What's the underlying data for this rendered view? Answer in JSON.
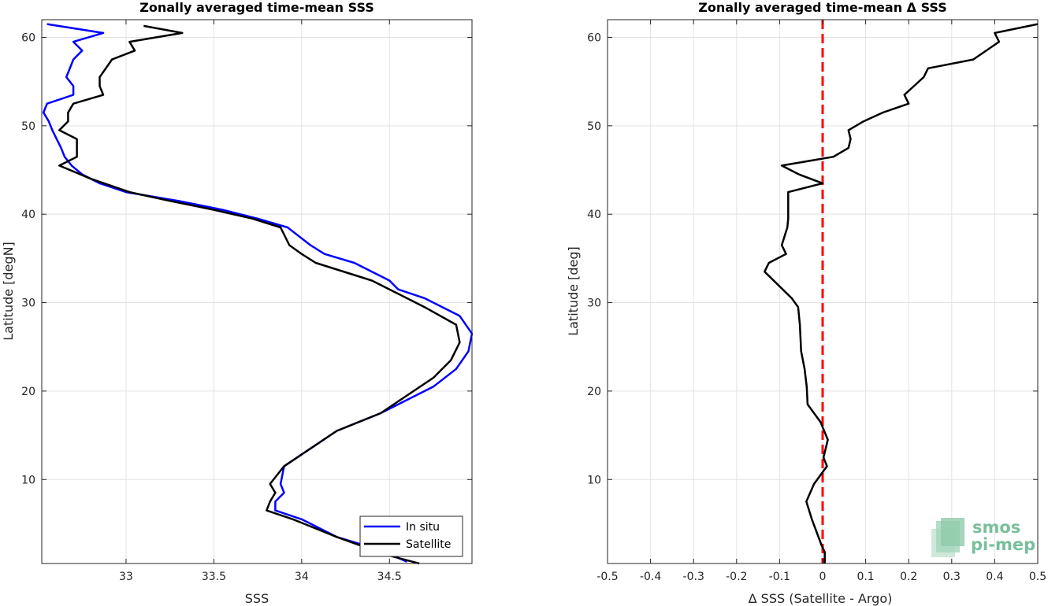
{
  "chart_data": [
    {
      "type": "line",
      "title": "Zonally averaged time-mean SSS",
      "xlabel": "SSS",
      "ylabel": "Latitude [degN]",
      "xlim": [
        32.52,
        34.97
      ],
      "ylim": [
        0.5,
        62
      ],
      "xticks": [
        33,
        33.5,
        34,
        34.5
      ],
      "xtick_labels": [
        "33",
        "33.5",
        "34",
        "34.5"
      ],
      "yticks": [
        10,
        20,
        30,
        40,
        50,
        60
      ],
      "ytick_labels": [
        "10",
        "20",
        "30",
        "40",
        "50",
        "60"
      ],
      "grid": true,
      "legend_position": "bottom-right",
      "series": [
        {
          "name": "In situ",
          "color": "#0000ff",
          "points": [
            [
              34.6,
              0.7
            ],
            [
              34.45,
              2
            ],
            [
              34.2,
              3.5
            ],
            [
              34.0,
              5.5
            ],
            [
              33.85,
              6.5
            ],
            [
              33.85,
              7.5
            ],
            [
              33.9,
              8.5
            ],
            [
              33.88,
              9.5
            ],
            [
              33.9,
              11.5
            ],
            [
              34.05,
              13.5
            ],
            [
              34.2,
              15.5
            ],
            [
              34.45,
              17.5
            ],
            [
              34.65,
              19.5
            ],
            [
              34.75,
              20.5
            ],
            [
              34.88,
              22.5
            ],
            [
              34.95,
              24.5
            ],
            [
              34.97,
              26.5
            ],
            [
              34.9,
              28.5
            ],
            [
              34.7,
              30.5
            ],
            [
              34.55,
              31.5
            ],
            [
              34.5,
              32.5
            ],
            [
              34.3,
              34.5
            ],
            [
              34.13,
              35.5
            ],
            [
              34.05,
              36.5
            ],
            [
              33.92,
              38.5
            ],
            [
              33.75,
              39.5
            ],
            [
              33.55,
              40.5
            ],
            [
              33.3,
              41.5
            ],
            [
              33.0,
              42.5
            ],
            [
              32.85,
              43.5
            ],
            [
              32.75,
              44.5
            ],
            [
              32.69,
              45.5
            ],
            [
              32.65,
              46.5
            ],
            [
              32.63,
              47.5
            ],
            [
              32.58,
              49.5
            ],
            [
              32.56,
              50.5
            ],
            [
              32.53,
              51.5
            ],
            [
              32.55,
              52.5
            ],
            [
              32.7,
              53.5
            ],
            [
              32.7,
              54.5
            ],
            [
              32.66,
              55.5
            ],
            [
              32.7,
              57.5
            ],
            [
              32.75,
              58.5
            ],
            [
              32.7,
              59.5
            ],
            [
              32.87,
              60.5
            ],
            [
              32.55,
              61.5
            ]
          ]
        },
        {
          "name": "Satellite",
          "color": "#000000",
          "points": [
            [
              34.67,
              0.5
            ],
            [
              34.48,
              1.5
            ],
            [
              34.2,
              3.5
            ],
            [
              33.95,
              5.5
            ],
            [
              33.8,
              6.5
            ],
            [
              33.82,
              7.5
            ],
            [
              33.85,
              8.5
            ],
            [
              33.82,
              9.5
            ],
            [
              33.9,
              11.5
            ],
            [
              34.05,
              13.5
            ],
            [
              34.2,
              15.5
            ],
            [
              34.45,
              17.5
            ],
            [
              34.6,
              19.5
            ],
            [
              34.75,
              21.5
            ],
            [
              34.85,
              23.5
            ],
            [
              34.9,
              25.5
            ],
            [
              34.88,
              27.5
            ],
            [
              34.7,
              29.5
            ],
            [
              34.5,
              31.5
            ],
            [
              34.4,
              32.5
            ],
            [
              34.08,
              34.5
            ],
            [
              34.0,
              35.5
            ],
            [
              33.93,
              36.5
            ],
            [
              33.88,
              38.5
            ],
            [
              33.72,
              39.5
            ],
            [
              33.5,
              40.5
            ],
            [
              33.25,
              41.5
            ],
            [
              33.02,
              42.5
            ],
            [
              32.8,
              44
            ],
            [
              32.62,
              45.5
            ],
            [
              32.72,
              46.5
            ],
            [
              32.72,
              48.5
            ],
            [
              32.62,
              49.5
            ],
            [
              32.67,
              50.5
            ],
            [
              32.67,
              51.5
            ],
            [
              32.7,
              52.5
            ],
            [
              32.87,
              53.5
            ],
            [
              32.85,
              54.5
            ],
            [
              32.85,
              55.5
            ],
            [
              32.92,
              57.5
            ],
            [
              33.05,
              58.5
            ],
            [
              33.02,
              59.5
            ],
            [
              33.32,
              60.5
            ],
            [
              33.1,
              61.3
            ]
          ]
        }
      ]
    },
    {
      "type": "line",
      "title": "Zonally averaged time-mean Δ SSS",
      "xlabel": "Δ SSS (Satellite - Argo)",
      "ylabel": "Latitude [deg]",
      "xlim": [
        -0.5,
        0.5
      ],
      "ylim": [
        0.5,
        62
      ],
      "xticks": [
        -0.5,
        -0.4,
        -0.3,
        -0.2,
        -0.1,
        0,
        0.1,
        0.2,
        0.3,
        0.4,
        0.5
      ],
      "xtick_labels": [
        "-0.5",
        "-0.4",
        "-0.3",
        "-0.2",
        "-0.1",
        "0",
        "0.1",
        "0.2",
        "0.3",
        "0.4",
        "0.5"
      ],
      "yticks": [
        10,
        20,
        30,
        40,
        50,
        60
      ],
      "ytick_labels": [
        "10",
        "20",
        "30",
        "40",
        "50",
        "60"
      ],
      "grid": true,
      "reference_line": {
        "x": 0,
        "color": "#ff0000",
        "style": "dashed"
      },
      "series": [
        {
          "color": "#000000",
          "points": [
            [
              0.005,
              0.5
            ],
            [
              0.005,
              1.8
            ],
            [
              -0.002,
              2.5
            ],
            [
              -0.025,
              5.5
            ],
            [
              -0.038,
              7.5
            ],
            [
              -0.02,
              9.5
            ],
            [
              0.01,
              11.5
            ],
            [
              0.002,
              12.5
            ],
            [
              0.012,
              14.5
            ],
            [
              -0.005,
              16.5
            ],
            [
              -0.035,
              18.5
            ],
            [
              -0.037,
              20.5
            ],
            [
              -0.042,
              22.5
            ],
            [
              -0.05,
              24.5
            ],
            [
              -0.053,
              27.5
            ],
            [
              -0.057,
              29.5
            ],
            [
              -0.072,
              30.5
            ],
            [
              -0.135,
              33.5
            ],
            [
              -0.125,
              34.5
            ],
            [
              -0.085,
              35.5
            ],
            [
              -0.095,
              36.5
            ],
            [
              -0.082,
              38.5
            ],
            [
              -0.08,
              39.5
            ],
            [
              -0.08,
              41.5
            ],
            [
              -0.08,
              42.5
            ],
            [
              0.0,
              43.5
            ],
            [
              -0.055,
              44.5
            ],
            [
              -0.095,
              45.5
            ],
            [
              0.025,
              46.5
            ],
            [
              0.06,
              47.5
            ],
            [
              0.065,
              48.5
            ],
            [
              0.06,
              49.5
            ],
            [
              0.095,
              50.5
            ],
            [
              0.14,
              51.5
            ],
            [
              0.2,
              52.5
            ],
            [
              0.19,
              53.5
            ],
            [
              0.235,
              55.5
            ],
            [
              0.245,
              56.5
            ],
            [
              0.35,
              57.5
            ],
            [
              0.41,
              59.5
            ],
            [
              0.4,
              60.5
            ],
            [
              0.5,
              61.5
            ]
          ]
        }
      ]
    }
  ],
  "legend": {
    "entries": [
      {
        "label": "In situ",
        "color": "#0000ff"
      },
      {
        "label": "Satellite",
        "color": "#000000"
      }
    ]
  },
  "logo": {
    "line1": "smos",
    "line2": "pi-mep",
    "color": "#79bf9b"
  }
}
